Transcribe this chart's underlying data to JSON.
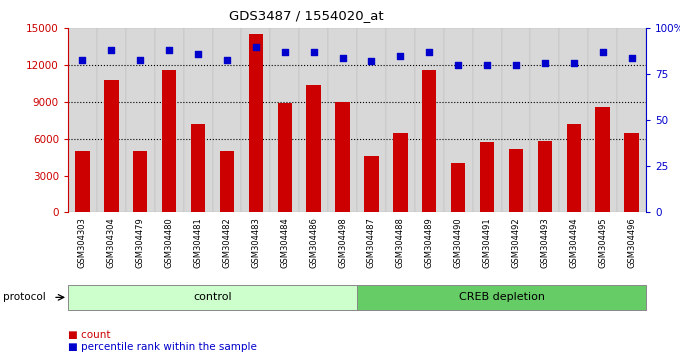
{
  "title": "GDS3487 / 1554020_at",
  "categories": [
    "GSM304303",
    "GSM304304",
    "GSM304479",
    "GSM304480",
    "GSM304481",
    "GSM304482",
    "GSM304483",
    "GSM304484",
    "GSM304486",
    "GSM304498",
    "GSM304487",
    "GSM304488",
    "GSM304489",
    "GSM304490",
    "GSM304491",
    "GSM304492",
    "GSM304493",
    "GSM304494",
    "GSM304495",
    "GSM304496"
  ],
  "bar_values": [
    5000,
    10800,
    5000,
    11600,
    7200,
    5000,
    14500,
    8900,
    10400,
    9000,
    4600,
    6500,
    11600,
    4000,
    5700,
    5200,
    5800,
    7200,
    8600,
    6500
  ],
  "percentile_values": [
    83,
    88,
    83,
    88,
    86,
    83,
    90,
    87,
    87,
    84,
    82,
    85,
    87,
    80,
    80,
    80,
    81,
    81,
    87,
    84
  ],
  "bar_color": "#cc0000",
  "dot_color": "#0000cc",
  "ylim_left": [
    0,
    15000
  ],
  "ylim_right": [
    0,
    100
  ],
  "yticks_left": [
    0,
    3000,
    6000,
    9000,
    12000,
    15000
  ],
  "yticks_right": [
    0,
    25,
    50,
    75,
    100
  ],
  "ytick_labels_right": [
    "0",
    "25",
    "50",
    "75",
    "100%"
  ],
  "grid_values": [
    6000,
    9000,
    12000
  ],
  "n_control": 10,
  "n_total": 20,
  "control_label": "control",
  "creb_label": "CREB depletion",
  "protocol_label": "protocol",
  "legend_count": "count",
  "legend_percentile": "percentile rank within the sample",
  "control_color": "#ccffcc",
  "creb_color": "#66cc66",
  "bar_width": 0.5
}
